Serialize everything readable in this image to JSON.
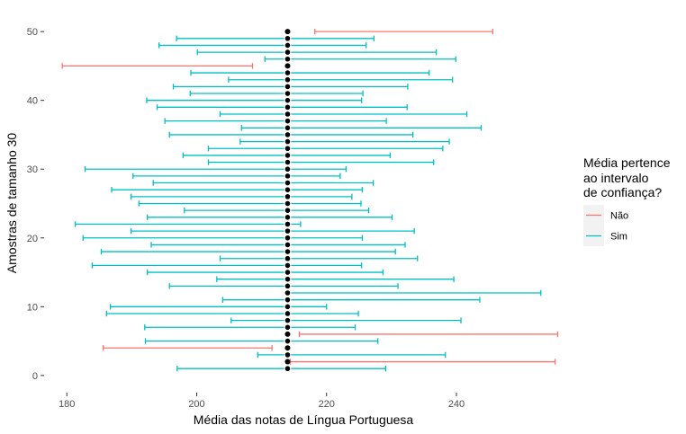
{
  "chart_data": {
    "type": "errorbar",
    "title": "",
    "xlabel": "Média das notas de Língua Portuguesa",
    "ylabel": "Amostras de tamanho 30",
    "xlim": [
      176.5,
      256.5
    ],
    "ylim": [
      -2.5,
      52.5
    ],
    "x_ticks": [
      180,
      200,
      220,
      240
    ],
    "y_ticks": [
      0,
      10,
      20,
      30,
      40,
      50
    ],
    "grid": false,
    "population_mean": 214,
    "legend": {
      "title_lines": [
        "Média pertence",
        "ao intervalo",
        "de confiança?"
      ],
      "placement": "right",
      "entries": [
        {
          "key": "Não",
          "label": "Não",
          "color": "#F8766D"
        },
        {
          "key": "Sim",
          "label": "Sim",
          "color": "#00BFC4"
        }
      ]
    },
    "intervals": [
      {
        "sample": 1,
        "lower": 197.0,
        "upper": 229.1,
        "group": "Sim"
      },
      {
        "sample": 2,
        "lower": 214.4,
        "upper": 255.2,
        "group": "Não"
      },
      {
        "sample": 3,
        "lower": 209.4,
        "upper": 238.3,
        "group": "Sim"
      },
      {
        "sample": 4,
        "lower": 185.6,
        "upper": 211.6,
        "group": "Não"
      },
      {
        "sample": 5,
        "lower": 192.1,
        "upper": 227.9,
        "group": "Sim"
      },
      {
        "sample": 6,
        "lower": 215.8,
        "upper": 255.6,
        "group": "Não"
      },
      {
        "sample": 7,
        "lower": 192.0,
        "upper": 224.4,
        "group": "Sim"
      },
      {
        "sample": 8,
        "lower": 205.3,
        "upper": 240.7,
        "group": "Sim"
      },
      {
        "sample": 9,
        "lower": 186.1,
        "upper": 224.9,
        "group": "Sim"
      },
      {
        "sample": 10,
        "lower": 186.7,
        "upper": 220.0,
        "group": "Sim"
      },
      {
        "sample": 11,
        "lower": 204.0,
        "upper": 243.6,
        "group": "Sim"
      },
      {
        "sample": 12,
        "lower": 214.0,
        "upper": 253.0,
        "group": "Sim"
      },
      {
        "sample": 13,
        "lower": 195.8,
        "upper": 231.0,
        "group": "Sim"
      },
      {
        "sample": 14,
        "lower": 203.1,
        "upper": 239.6,
        "group": "Sim"
      },
      {
        "sample": 15,
        "lower": 192.4,
        "upper": 228.7,
        "group": "Sim"
      },
      {
        "sample": 16,
        "lower": 183.9,
        "upper": 225.4,
        "group": "Sim"
      },
      {
        "sample": 17,
        "lower": 203.6,
        "upper": 234.0,
        "group": "Sim"
      },
      {
        "sample": 18,
        "lower": 185.3,
        "upper": 230.6,
        "group": "Sim"
      },
      {
        "sample": 19,
        "lower": 193.0,
        "upper": 232.1,
        "group": "Sim"
      },
      {
        "sample": 20,
        "lower": 182.5,
        "upper": 225.5,
        "group": "Sim"
      },
      {
        "sample": 21,
        "lower": 189.9,
        "upper": 233.5,
        "group": "Sim"
      },
      {
        "sample": 22,
        "lower": 181.3,
        "upper": 216.0,
        "group": "Sim"
      },
      {
        "sample": 23,
        "lower": 192.4,
        "upper": 230.1,
        "group": "Sim"
      },
      {
        "sample": 24,
        "lower": 198.1,
        "upper": 226.5,
        "group": "Sim"
      },
      {
        "sample": 25,
        "lower": 191.1,
        "upper": 225.3,
        "group": "Sim"
      },
      {
        "sample": 26,
        "lower": 189.9,
        "upper": 223.9,
        "group": "Sim"
      },
      {
        "sample": 27,
        "lower": 186.9,
        "upper": 225.5,
        "group": "Sim"
      },
      {
        "sample": 28,
        "lower": 193.3,
        "upper": 227.2,
        "group": "Sim"
      },
      {
        "sample": 29,
        "lower": 190.2,
        "upper": 222.1,
        "group": "Sim"
      },
      {
        "sample": 30,
        "lower": 182.8,
        "upper": 223.0,
        "group": "Sim"
      },
      {
        "sample": 31,
        "lower": 201.8,
        "upper": 236.5,
        "group": "Sim"
      },
      {
        "sample": 32,
        "lower": 197.9,
        "upper": 229.8,
        "group": "Sim"
      },
      {
        "sample": 33,
        "lower": 201.8,
        "upper": 237.9,
        "group": "Sim"
      },
      {
        "sample": 34,
        "lower": 206.7,
        "upper": 238.9,
        "group": "Sim"
      },
      {
        "sample": 35,
        "lower": 195.8,
        "upper": 233.3,
        "group": "Sim"
      },
      {
        "sample": 36,
        "lower": 206.9,
        "upper": 243.8,
        "group": "Sim"
      },
      {
        "sample": 37,
        "lower": 195.1,
        "upper": 229.2,
        "group": "Sim"
      },
      {
        "sample": 38,
        "lower": 203.6,
        "upper": 241.6,
        "group": "Sim"
      },
      {
        "sample": 39,
        "lower": 193.9,
        "upper": 232.4,
        "group": "Sim"
      },
      {
        "sample": 40,
        "lower": 192.3,
        "upper": 225.4,
        "group": "Sim"
      },
      {
        "sample": 41,
        "lower": 199.0,
        "upper": 225.6,
        "group": "Sim"
      },
      {
        "sample": 42,
        "lower": 196.4,
        "upper": 232.5,
        "group": "Sim"
      },
      {
        "sample": 43,
        "lower": 204.9,
        "upper": 239.4,
        "group": "Sim"
      },
      {
        "sample": 44,
        "lower": 199.1,
        "upper": 235.8,
        "group": "Sim"
      },
      {
        "sample": 45,
        "lower": 179.3,
        "upper": 208.6,
        "group": "Não"
      },
      {
        "sample": 46,
        "lower": 210.5,
        "upper": 239.9,
        "group": "Sim"
      },
      {
        "sample": 47,
        "lower": 200.1,
        "upper": 236.9,
        "group": "Sim"
      },
      {
        "sample": 48,
        "lower": 194.2,
        "upper": 226.1,
        "group": "Sim"
      },
      {
        "sample": 49,
        "lower": 196.9,
        "upper": 227.3,
        "group": "Sim"
      },
      {
        "sample": 50,
        "lower": 218.2,
        "upper": 245.6,
        "group": "Não"
      }
    ]
  }
}
